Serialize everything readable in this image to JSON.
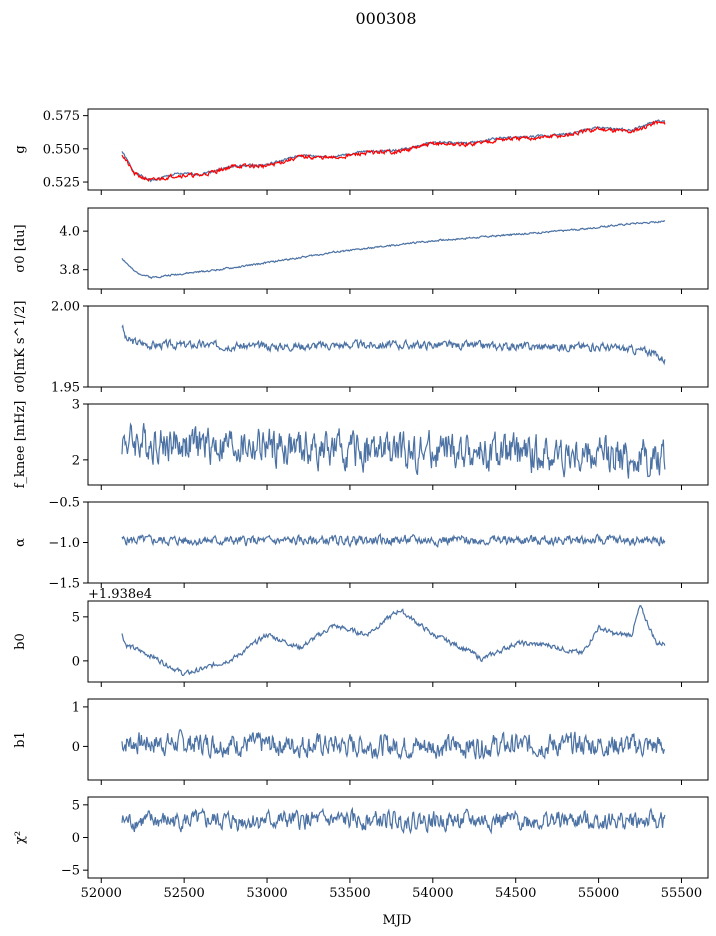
{
  "suptitle": "000308",
  "xlabel": "MJD",
  "colors": {
    "series": "#4c72a4",
    "overlay": "#ff0000",
    "frame": "#000000"
  },
  "chart_data": [
    {
      "id": "g",
      "type": "line",
      "ylabel": "g",
      "xlim": [
        51920,
        55660
      ],
      "ylim": [
        0.519,
        0.58
      ],
      "yticks": [
        {
          "v": 0.525,
          "label": "0.525"
        },
        {
          "v": 0.55,
          "label": "0.550"
        },
        {
          "v": 0.575,
          "label": "0.575"
        }
      ],
      "x": [
        52125,
        52200,
        52300,
        52450,
        52600,
        52800,
        53000,
        53200,
        53400,
        53600,
        53800,
        54000,
        54200,
        54400,
        54600,
        54800,
        55000,
        55200,
        55350,
        55400
      ],
      "values": [
        0.548,
        0.532,
        0.526,
        0.531,
        0.531,
        0.537,
        0.538,
        0.545,
        0.544,
        0.548,
        0.549,
        0.555,
        0.554,
        0.558,
        0.559,
        0.561,
        0.566,
        0.564,
        0.571,
        0.57
      ],
      "overlay": {
        "x": [
          52125,
          52200,
          52300,
          52450,
          52600,
          52800,
          53000,
          53200,
          53400,
          53600,
          53800,
          54000,
          54200,
          54400,
          54600,
          54800,
          55000,
          55200,
          55350,
          55400
        ],
        "values": [
          0.546,
          0.531,
          0.526,
          0.53,
          0.53,
          0.537,
          0.537,
          0.544,
          0.543,
          0.547,
          0.548,
          0.554,
          0.553,
          0.557,
          0.558,
          0.56,
          0.565,
          0.563,
          0.57,
          0.569
        ]
      },
      "wiggle": 0.0008,
      "noise_seed": 1
    },
    {
      "id": "sigma0_du",
      "type": "line",
      "ylabel": "σ0 [du]",
      "xlim": [
        51920,
        55660
      ],
      "ylim": [
        3.7,
        4.12
      ],
      "yticks": [
        {
          "v": 3.8,
          "label": "3.8"
        },
        {
          "v": 4.0,
          "label": "4.0"
        }
      ],
      "x": [
        52125,
        52200,
        52300,
        52500,
        52800,
        53100,
        53400,
        53700,
        54000,
        54300,
        54600,
        54900,
        55200,
        55400
      ],
      "values": [
        3.86,
        3.79,
        3.76,
        3.78,
        3.81,
        3.85,
        3.89,
        3.92,
        3.95,
        3.97,
        3.99,
        4.01,
        4.04,
        4.05
      ],
      "wiggle": 0.004,
      "noise_seed": 2
    },
    {
      "id": "sigma0_mK",
      "type": "line",
      "ylabel": "σ0[mK s^1/2]",
      "xlim": [
        51920,
        55660
      ],
      "ylim": [
        1.95,
        2.0
      ],
      "yticks": [
        {
          "v": 1.95,
          "label": "1.95"
        },
        {
          "v": 2.0,
          "label": "2.00"
        }
      ],
      "x": [
        52125,
        52150,
        52300,
        52600,
        53000,
        53500,
        54000,
        54500,
        55000,
        55300,
        55400
      ],
      "values": [
        1.988,
        1.979,
        1.976,
        1.976,
        1.975,
        1.976,
        1.976,
        1.975,
        1.975,
        1.972,
        1.967
      ],
      "wiggle": 0.0022,
      "noise_seed": 3
    },
    {
      "id": "fknee",
      "type": "line",
      "ylabel": "f_knee [mHz]",
      "xlim": [
        51920,
        55660
      ],
      "ylim": [
        1.55,
        3.0
      ],
      "yticks": [
        {
          "v": 2,
          "label": "2"
        },
        {
          "v": 3,
          "label": "3"
        }
      ],
      "x": [
        52125,
        52400,
        52800,
        53200,
        53600,
        54000,
        54400,
        54800,
        55200,
        55400
      ],
      "values": [
        2.35,
        2.3,
        2.25,
        2.2,
        2.15,
        2.15,
        2.1,
        2.1,
        2.05,
        2.0
      ],
      "wiggle": 0.28,
      "noise_seed": 4
    },
    {
      "id": "alpha",
      "type": "line",
      "ylabel": "α",
      "xlim": [
        51920,
        55660
      ],
      "ylim": [
        -1.5,
        -0.5
      ],
      "yticks": [
        {
          "v": -1.5,
          "label": "−1.5"
        },
        {
          "v": -1.0,
          "label": "−1.0"
        },
        {
          "v": -0.5,
          "label": "−0.5"
        }
      ],
      "x": [
        52125,
        53000,
        54000,
        55000,
        55400
      ],
      "values": [
        -0.97,
        -0.98,
        -0.97,
        -0.97,
        -0.98
      ],
      "wiggle": 0.05,
      "noise_seed": 5
    },
    {
      "id": "b0",
      "type": "line",
      "ylabel": "b0",
      "offset_label": "+1.938e4",
      "xlim": [
        51920,
        55660
      ],
      "ylim": [
        -2.4,
        6.8
      ],
      "yticks": [
        {
          "v": 0,
          "label": "0"
        },
        {
          "v": 5,
          "label": "5"
        }
      ],
      "x": [
        52125,
        52150,
        52300,
        52500,
        52600,
        52800,
        53000,
        53200,
        53400,
        53600,
        53800,
        54000,
        54200,
        54300,
        54500,
        54700,
        54900,
        55000,
        55100,
        55200,
        55250,
        55350,
        55400
      ],
      "values": [
        3.0,
        1.8,
        0.6,
        -1.5,
        -1.0,
        0.3,
        3.0,
        1.5,
        4.0,
        3.0,
        5.8,
        3.0,
        1.3,
        0.2,
        2.0,
        1.8,
        0.8,
        3.8,
        3.0,
        3.0,
        6.2,
        2.0,
        2.0
      ],
      "wiggle": 0.25,
      "noise_seed": 6
    },
    {
      "id": "b1",
      "type": "line",
      "ylabel": "b1",
      "xlim": [
        51920,
        55660
      ],
      "ylim": [
        -0.85,
        1.2
      ],
      "yticks": [
        {
          "v": 0,
          "label": "0"
        },
        {
          "v": 1,
          "label": "1"
        }
      ],
      "x": [
        52125,
        53000,
        54000,
        55000,
        55400
      ],
      "values": [
        0.1,
        0.05,
        0.0,
        0.05,
        0.0
      ],
      "wiggle": 0.24,
      "noise_seed": 7
    },
    {
      "id": "chi2",
      "type": "line",
      "ylabel": "χ²",
      "xlim": [
        51920,
        55660
      ],
      "ylim": [
        -6.2,
        6.2
      ],
      "yticks": [
        {
          "v": -5,
          "label": "−5"
        },
        {
          "v": 0,
          "label": "0"
        },
        {
          "v": 5,
          "label": "5"
        }
      ],
      "x": [
        52125,
        53000,
        54000,
        55000,
        55400
      ],
      "values": [
        2.5,
        2.6,
        2.6,
        2.6,
        2.5
      ],
      "wiggle": 1.2,
      "noise_seed": 8
    }
  ],
  "xticks": [
    {
      "v": 52000,
      "label": "52000"
    },
    {
      "v": 52500,
      "label": "52500"
    },
    {
      "v": 53000,
      "label": "53000"
    },
    {
      "v": 53500,
      "label": "53500"
    },
    {
      "v": 54000,
      "label": "54000"
    },
    {
      "v": 54500,
      "label": "54500"
    },
    {
      "v": 55000,
      "label": "55000"
    },
    {
      "v": 55500,
      "label": "55500"
    }
  ]
}
